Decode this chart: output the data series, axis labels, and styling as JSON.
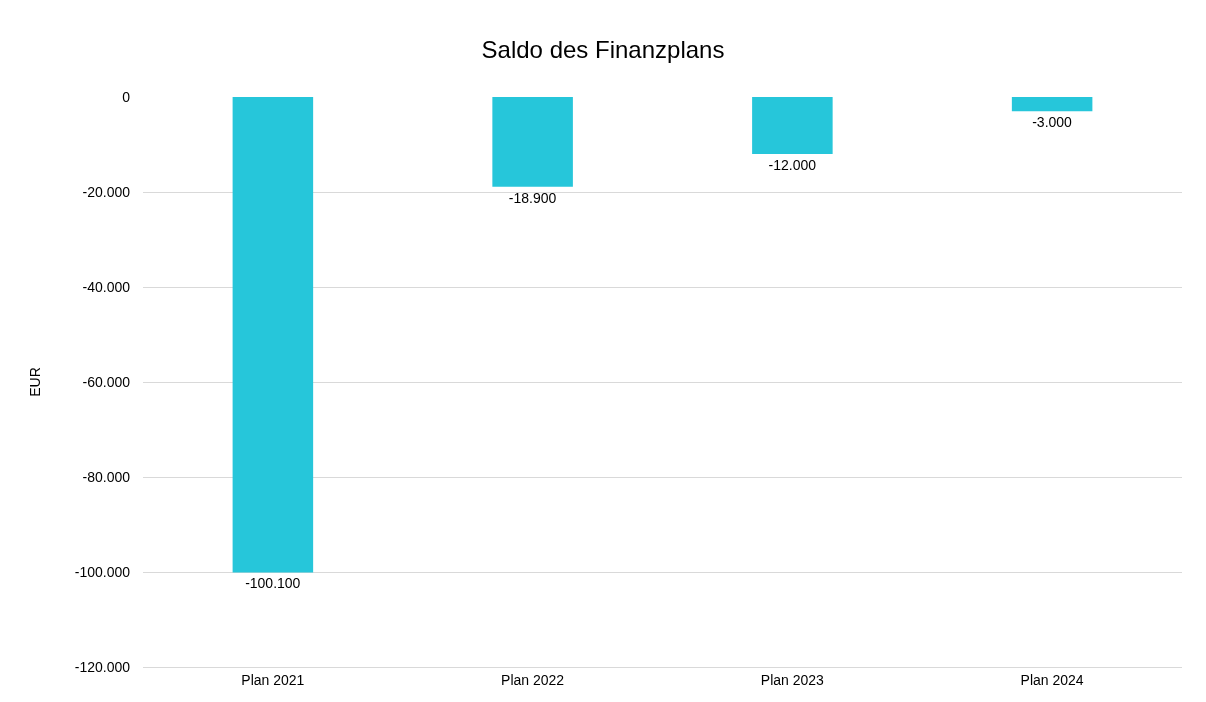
{
  "chart_data": {
    "type": "bar",
    "title": "Saldo des Finanzplans",
    "ylabel": "EUR",
    "categories": [
      "Plan 2021",
      "Plan 2022",
      "Plan 2023",
      "Plan 2024"
    ],
    "values": [
      -100100,
      -18900,
      -12000,
      -3000
    ],
    "color": "#26c6da",
    "ylim": [
      -120000,
      0
    ],
    "yticks": [
      {
        "value": -120000,
        "label": "-120.000"
      },
      {
        "value": -100000,
        "label": "-100.000"
      },
      {
        "value": -80000,
        "label": "-80.000"
      },
      {
        "value": -60000,
        "label": "-60.000"
      },
      {
        "value": -40000,
        "label": "-40.000"
      },
      {
        "value": -20000,
        "label": "-20.000"
      },
      0
    ],
    "value_labels": [
      "-100.100",
      "-18.900",
      "-12.000",
      "-3.000"
    ],
    "grid": "y"
  }
}
